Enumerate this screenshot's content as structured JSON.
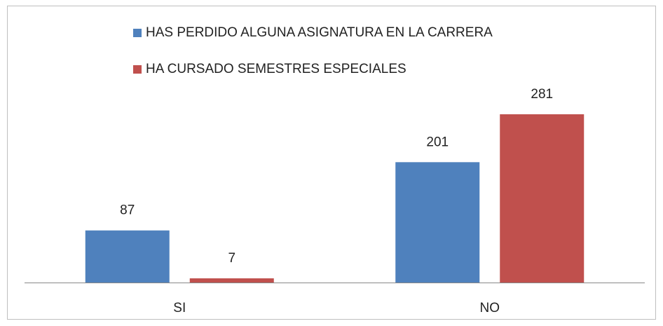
{
  "chart_data": {
    "type": "bar",
    "categories": [
      "SI",
      "NO"
    ],
    "series": [
      {
        "name": "HAS PERDIDO ALGUNA ASIGNATURA EN LA CARRERA",
        "color": "#4f81bd",
        "values": [
          87,
          201
        ]
      },
      {
        "name": "HA CURSADO SEMESTRES ESPECIALES",
        "color": "#c0504d",
        "values": [
          7,
          281
        ]
      }
    ]
  }
}
